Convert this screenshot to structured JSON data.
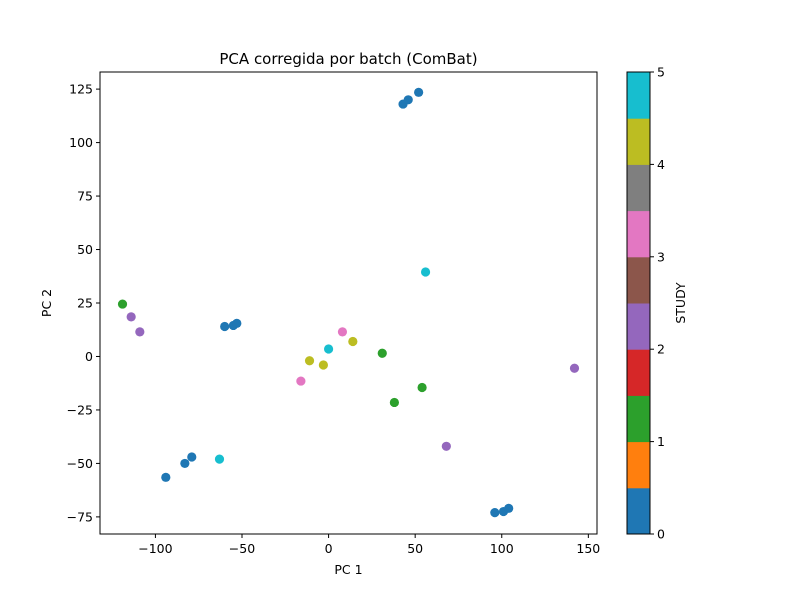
{
  "chart_data": {
    "type": "scatter",
    "title": "PCA corregida por batch (ComBat)",
    "xlabel": "PC 1",
    "ylabel": "PC 2",
    "xlim": [
      -132,
      155
    ],
    "ylim": [
      -83,
      133
    ],
    "xticks": [
      -100,
      -50,
      0,
      50,
      100,
      150
    ],
    "yticks": [
      -75,
      -50,
      -25,
      0,
      25,
      50,
      75,
      100,
      125
    ],
    "grid": false,
    "colorbar": {
      "label": "STUDY",
      "min": 0,
      "max": 5,
      "ticks": [
        0,
        1,
        2,
        3,
        4,
        5
      ],
      "colors": [
        "#1f77b4",
        "#ff7f0e",
        "#2ca02c",
        "#d62728",
        "#9467bd",
        "#8c564b",
        "#e377c2",
        "#7f7f7f",
        "#bcbd22",
        "#17becf"
      ]
    },
    "points": [
      {
        "x": 43,
        "y": 118,
        "study": 0
      },
      {
        "x": 46,
        "y": 120,
        "study": 0
      },
      {
        "x": 52,
        "y": 123.5,
        "study": 0
      },
      {
        "x": -60,
        "y": 14,
        "study": 0
      },
      {
        "x": -55,
        "y": 14.5,
        "study": 0
      },
      {
        "x": -53,
        "y": 15.5,
        "study": 0
      },
      {
        "x": -94,
        "y": -56.5,
        "study": 0
      },
      {
        "x": -83,
        "y": -50,
        "study": 0
      },
      {
        "x": -79,
        "y": -47,
        "study": 0
      },
      {
        "x": 96,
        "y": -73,
        "study": 0
      },
      {
        "x": 101,
        "y": -72.5,
        "study": 0
      },
      {
        "x": 104,
        "y": -71,
        "study": 0
      },
      {
        "x": -119,
        "y": 24.5,
        "study": 1
      },
      {
        "x": 31,
        "y": 1.5,
        "study": 1
      },
      {
        "x": 54,
        "y": -14.5,
        "study": 1
      },
      {
        "x": 38,
        "y": -21.5,
        "study": 1
      },
      {
        "x": -114,
        "y": 18.5,
        "study": 2
      },
      {
        "x": -109,
        "y": 11.5,
        "study": 2
      },
      {
        "x": 68,
        "y": -42,
        "study": 2
      },
      {
        "x": 142,
        "y": -5.5,
        "study": 2
      },
      {
        "x": 8,
        "y": 11.5,
        "study": 3
      },
      {
        "x": -16,
        "y": -11.5,
        "study": 3
      },
      {
        "x": -11,
        "y": -2,
        "study": 4
      },
      {
        "x": -3,
        "y": -4,
        "study": 4
      },
      {
        "x": 14,
        "y": 7,
        "study": 4
      },
      {
        "x": 0,
        "y": 3.5,
        "study": 5
      },
      {
        "x": 56,
        "y": 39.5,
        "study": 5
      },
      {
        "x": -63,
        "y": -48,
        "study": 5
      }
    ]
  }
}
